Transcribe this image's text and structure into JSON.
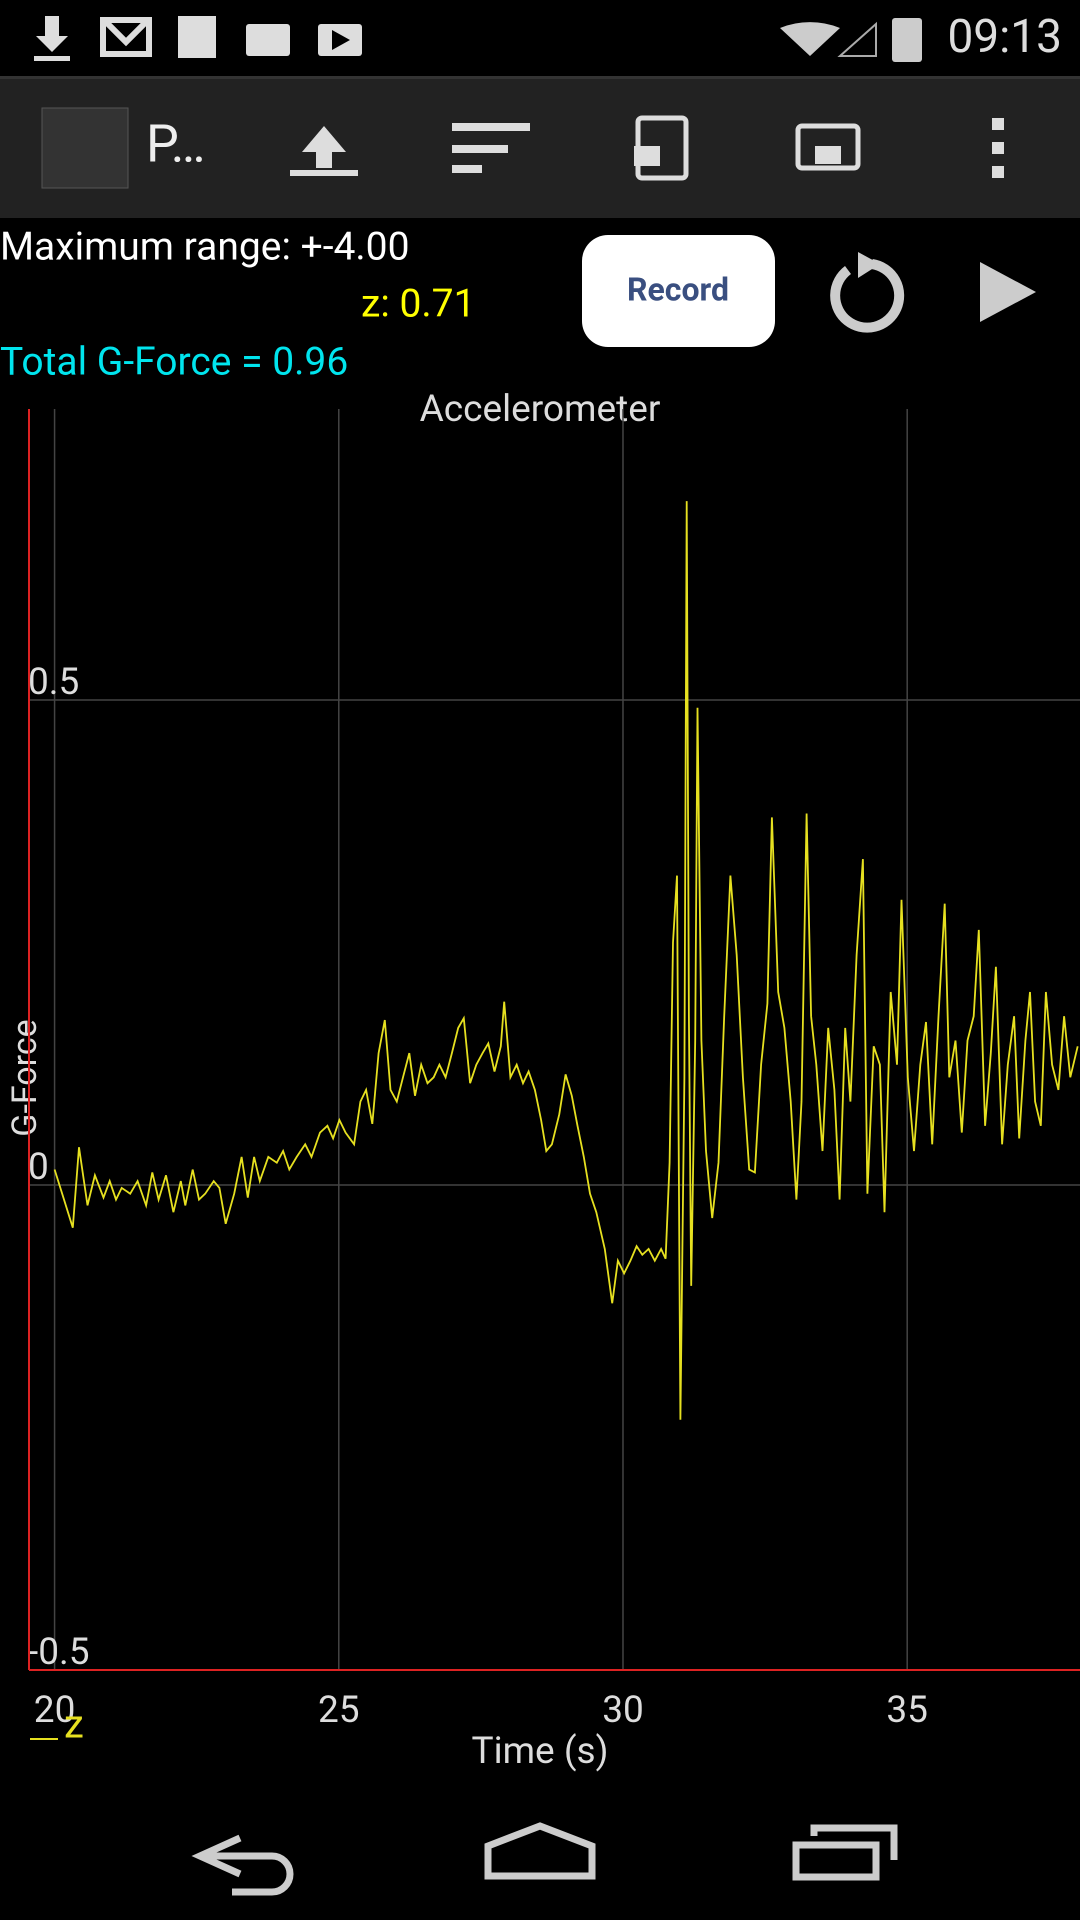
{
  "status_bar": {
    "time": "09:13"
  },
  "app_bar": {
    "title": "P…"
  },
  "info": {
    "max_range": "Maximum range: +-4.00",
    "axis_value": "z: 0.71",
    "total": "Total G-Force = 0.96"
  },
  "controls": {
    "record": "Record"
  },
  "chart_data": {
    "type": "line",
    "title": "Accelerometer",
    "x_label": "Time (s)",
    "y_label": "G-Force",
    "xlim": [
      19.55,
      38.04
    ],
    "ylim": [
      -0.5,
      0.8
    ],
    "xticks": [
      20,
      25,
      30,
      35
    ],
    "yticks": [
      -0.5,
      0,
      0.5
    ],
    "grid": true,
    "legend": "bottom-left",
    "x": [
      20.0,
      20.32,
      20.43,
      20.58,
      20.71,
      20.86,
      20.97,
      21.08,
      21.18,
      21.33,
      21.46,
      21.61,
      21.72,
      21.83,
      21.96,
      22.09,
      22.22,
      22.3,
      22.43,
      22.54,
      22.65,
      22.8,
      22.9,
      23.01,
      23.16,
      23.29,
      23.4,
      23.51,
      23.61,
      23.76,
      23.91,
      24.02,
      24.13,
      24.26,
      24.41,
      24.52,
      24.67,
      24.8,
      24.9,
      25.01,
      25.12,
      25.27,
      25.38,
      25.48,
      25.59,
      25.7,
      25.81,
      25.91,
      26.02,
      26.13,
      26.24,
      26.34,
      26.45,
      26.56,
      26.67,
      26.77,
      26.88,
      26.99,
      27.1,
      27.2,
      27.31,
      27.42,
      27.53,
      27.63,
      27.74,
      27.85,
      27.91,
      28.02,
      28.13,
      28.24,
      28.34,
      28.45,
      28.56,
      28.65,
      28.75,
      28.88,
      28.99,
      29.1,
      29.2,
      29.31,
      29.42,
      29.53,
      29.68,
      29.81,
      29.91,
      30.02,
      30.13,
      30.24,
      30.34,
      30.45,
      30.56,
      30.67,
      30.75,
      30.82,
      30.88,
      30.95,
      31.01,
      31.08,
      31.12,
      31.16,
      31.2,
      31.27,
      31.31,
      31.38,
      31.46,
      31.57,
      31.68,
      31.78,
      31.89,
      32.0,
      32.11,
      32.22,
      32.32,
      32.43,
      32.54,
      32.62,
      32.73,
      32.84,
      32.95,
      33.05,
      33.14,
      33.23,
      33.31,
      33.4,
      33.51,
      33.61,
      33.72,
      33.81,
      33.91,
      34.0,
      34.11,
      34.22,
      34.3,
      34.41,
      34.52,
      34.6,
      34.71,
      34.82,
      34.9,
      35.01,
      35.12,
      35.23,
      35.33,
      35.44,
      35.55,
      35.66,
      35.74,
      35.85,
      35.96,
      36.06,
      36.17,
      36.26,
      36.37,
      36.47,
      36.56,
      36.67,
      36.77,
      36.88,
      36.97,
      37.08,
      37.16,
      37.25,
      37.35,
      37.44,
      37.55,
      37.66,
      37.76,
      37.87,
      38.0
    ],
    "series": [
      {
        "name": "z",
        "color": "#e6e020",
        "values": [
          0.016,
          -0.044,
          0.039,
          -0.021,
          0.01,
          -0.013,
          0.004,
          -0.015,
          -0.003,
          -0.009,
          0.004,
          -0.021,
          0.013,
          -0.015,
          0.01,
          -0.028,
          0.004,
          -0.021,
          0.016,
          -0.015,
          -0.009,
          0.004,
          -0.003,
          -0.04,
          -0.009,
          0.029,
          -0.013,
          0.029,
          0.004,
          0.029,
          0.023,
          0.035,
          0.016,
          0.029,
          0.042,
          0.029,
          0.054,
          0.061,
          0.048,
          0.067,
          0.054,
          0.042,
          0.086,
          0.098,
          0.063,
          0.136,
          0.17,
          0.098,
          0.086,
          0.111,
          0.136,
          0.092,
          0.124,
          0.105,
          0.111,
          0.124,
          0.111,
          0.136,
          0.162,
          0.172,
          0.105,
          0.124,
          0.136,
          0.146,
          0.117,
          0.143,
          0.189,
          0.111,
          0.124,
          0.105,
          0.117,
          0.098,
          0.067,
          0.035,
          0.042,
          0.073,
          0.114,
          0.092,
          0.061,
          0.029,
          -0.009,
          -0.028,
          -0.066,
          -0.122,
          -0.078,
          -0.091,
          -0.078,
          -0.063,
          -0.072,
          -0.066,
          -0.078,
          -0.066,
          -0.076,
          0.023,
          0.25,
          0.319,
          -0.242,
          0.111,
          0.705,
          0.174,
          -0.104,
          0.149,
          0.492,
          0.149,
          0.035,
          -0.034,
          0.023,
          0.174,
          0.319,
          0.237,
          0.111,
          0.016,
          0.013,
          0.124,
          0.187,
          0.379,
          0.199,
          0.162,
          0.086,
          -0.015,
          0.086,
          0.383,
          0.174,
          0.124,
          0.035,
          0.162,
          0.098,
          -0.015,
          0.162,
          0.086,
          0.237,
          0.336,
          -0.009,
          0.143,
          0.124,
          -0.028,
          0.199,
          0.124,
          0.294,
          0.111,
          0.035,
          0.124,
          0.168,
          0.042,
          0.174,
          0.29,
          0.111,
          0.149,
          0.054,
          0.149,
          0.174,
          0.263,
          0.061,
          0.136,
          0.225,
          0.042,
          0.124,
          0.174,
          0.048,
          0.149,
          0.199,
          0.086,
          0.061,
          0.199,
          0.124,
          0.098,
          0.174,
          0.111,
          0.143
        ]
      }
    ]
  }
}
